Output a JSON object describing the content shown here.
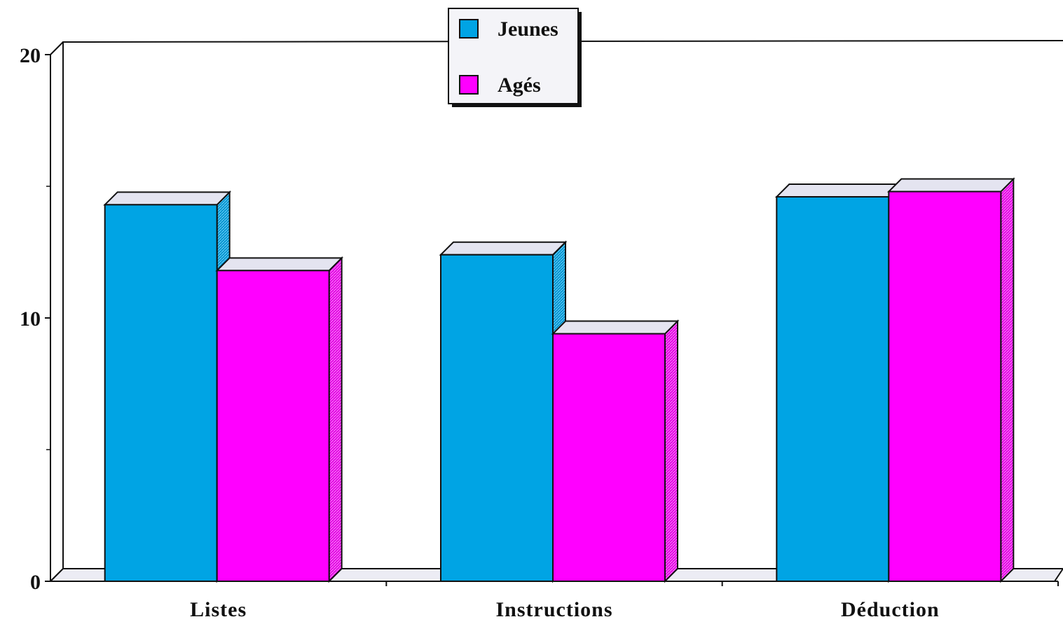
{
  "chart_data": {
    "type": "bar",
    "style": "3d-clustered",
    "categories": [
      "Listes",
      "Instructions",
      "Déduction"
    ],
    "series": [
      {
        "name": "Jeunes",
        "color": "#00A4E4",
        "values": [
          14.3,
          12.4,
          14.6
        ]
      },
      {
        "name": "Agés",
        "color": "#FF00FF",
        "values": [
          11.8,
          9.4,
          14.8
        ]
      }
    ],
    "ylim": [
      0,
      20
    ],
    "yticks": [
      0,
      10,
      20
    ],
    "ytick_labels": [
      "0",
      "10",
      "20"
    ],
    "minor_yticks": [
      5,
      15
    ],
    "title": "",
    "xlabel": "",
    "ylabel": "",
    "grid": false,
    "legend_position": "top-center"
  }
}
